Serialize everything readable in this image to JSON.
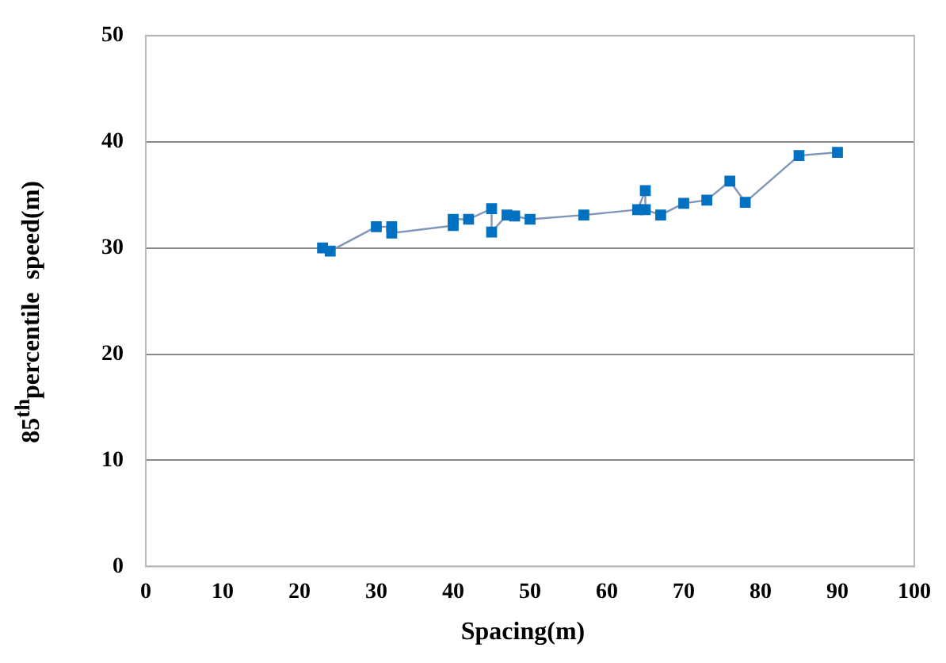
{
  "chart_data": {
    "type": "line",
    "xlabel": "Spacing(m)",
    "ylabel": "85$^{th}$percentile  speed(m)",
    "x": [
      23,
      24,
      30,
      32,
      32,
      40,
      40,
      42,
      45,
      45,
      47,
      48,
      50,
      57,
      64,
      65,
      65,
      67,
      70,
      73,
      76,
      78,
      85,
      90
    ],
    "series": [
      {
        "color": "#0070c0",
        "values": [
          30,
          29.7,
          32,
          32,
          31.4,
          32.1,
          32.7,
          32.7,
          33.7,
          31.5,
          33.1,
          33,
          32.7,
          33.1,
          33.6,
          35.4,
          33.6,
          33.1,
          34.2,
          34.5,
          36.3,
          34.3,
          38.7,
          39
        ]
      }
    ],
    "xlim": [
      0,
      100
    ],
    "xticks": [
      0,
      10,
      20,
      30,
      40,
      50,
      60,
      70,
      80,
      90,
      100
    ],
    "ylim": [
      0,
      50
    ],
    "yticks": [
      0,
      10,
      20,
      30,
      40,
      50
    ],
    "grid": "y",
    "marker": "square",
    "line_style": "solid",
    "legend": false
  }
}
